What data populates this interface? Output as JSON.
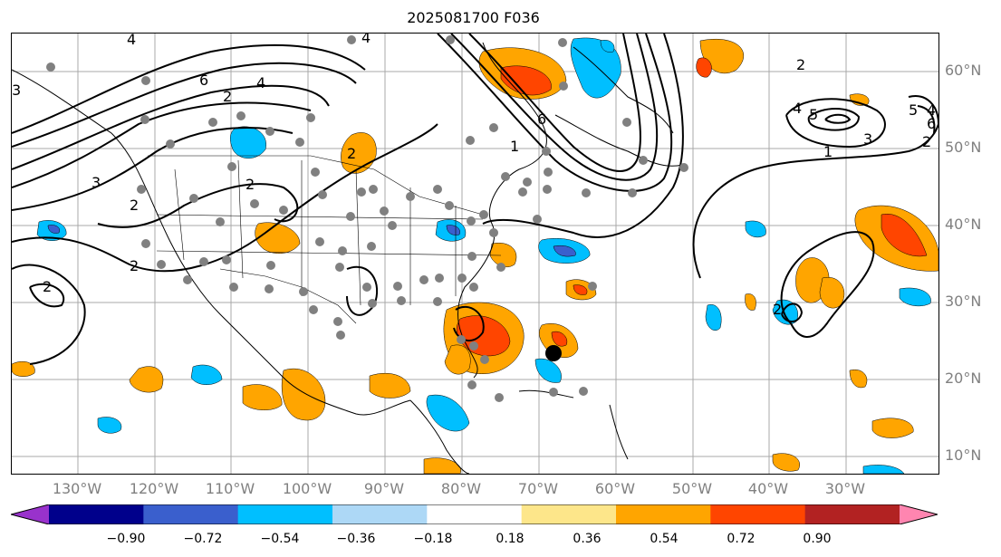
{
  "title": "2025081700 F036",
  "lat_labels": [
    "60°N",
    "50°N",
    "40°N",
    "30°N",
    "20°N",
    "10°N"
  ],
  "lon_labels": [
    "130°W",
    "120°W",
    "110°W",
    "100°W",
    "90°W",
    "80°W",
    "70°W",
    "60°W",
    "50°W",
    "40°W",
    "30°W"
  ],
  "colorbar": {
    "ticks": [
      "−0.90",
      "−0.72",
      "−0.54",
      "−0.36",
      "−0.18",
      "0.18",
      "0.36",
      "0.54",
      "0.72",
      "0.90"
    ],
    "colors": [
      "#9932cc",
      "#00008b",
      "#3a5fcd",
      "#00bfff",
      "#add8f6",
      "#ffffff",
      "#fde68a",
      "#ffa500",
      "#ff4500",
      "#b22222",
      "#ff85b0"
    ]
  },
  "contour_labels": [
    "4",
    "6",
    "2",
    "4",
    "2",
    "3",
    "2",
    "3",
    "2",
    "4",
    "6",
    "1",
    "2",
    "5",
    "4",
    "3",
    "1",
    "2",
    "4",
    "5",
    "6",
    "2",
    "2",
    "2"
  ],
  "storm_marker": {
    "lat": 23.5,
    "lon": -70.5
  }
}
